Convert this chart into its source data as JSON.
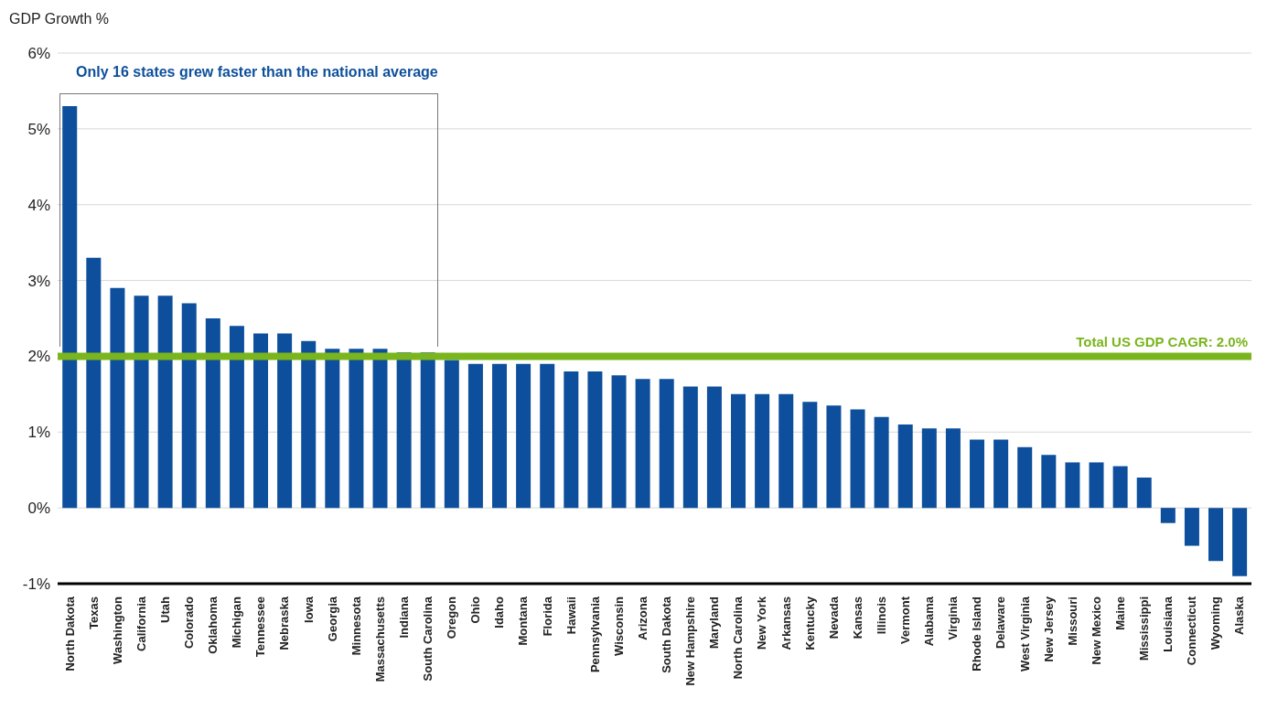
{
  "chart_data": {
    "type": "bar",
    "ylabel": "GDP Growth %",
    "categories": [
      "North Dakota",
      "Texas",
      "Washington",
      "California",
      "Utah",
      "Colorado",
      "Oklahoma",
      "Michigan",
      "Tennessee",
      "Nebraska",
      "Iowa",
      "Georgia",
      "Minnesota",
      "Massachusetts",
      "Indiana",
      "South Carolina",
      "Oregon",
      "Ohio",
      "Idaho",
      "Montana",
      "Florida",
      "Hawaii",
      "Pennsylvania",
      "Wisconsin",
      "Arizona",
      "South Dakota",
      "New Hampshire",
      "Maryland",
      "North Carolina",
      "New York",
      "Arkansas",
      "Kentucky",
      "Nevada",
      "Kansas",
      "Illinois",
      "Vermont",
      "Alabama",
      "Virginia",
      "Rhode Island",
      "Delaware",
      "West Virginia",
      "New Jersey",
      "Missouri",
      "New Mexico",
      "Maine",
      "Mississippi",
      "Louisiana",
      "Connecticut",
      "Wyoming",
      "Alaska"
    ],
    "values": [
      5.3,
      3.3,
      2.9,
      2.8,
      2.8,
      2.7,
      2.5,
      2.4,
      2.3,
      2.3,
      2.2,
      2.1,
      2.1,
      2.1,
      2.05,
      2.05,
      1.95,
      1.9,
      1.9,
      1.9,
      1.9,
      1.8,
      1.8,
      1.75,
      1.7,
      1.7,
      1.6,
      1.6,
      1.5,
      1.5,
      1.5,
      1.4,
      1.35,
      1.3,
      1.2,
      1.1,
      1.05,
      1.05,
      0.9,
      0.9,
      0.8,
      0.7,
      0.6,
      0.6,
      0.55,
      0.4,
      -0.2,
      -0.5,
      -0.7,
      -0.9
    ],
    "color": "#0d4f9c",
    "ylim": [
      -1,
      6
    ],
    "yticks": [
      {
        "value": -1,
        "label": "-1%"
      },
      {
        "value": 0,
        "label": "0%"
      },
      {
        "value": 1,
        "label": "1%"
      },
      {
        "value": 2,
        "label": "2%"
      },
      {
        "value": 3,
        "label": "3%"
      },
      {
        "value": 4,
        "label": "4%"
      },
      {
        "value": 5,
        "label": "5%"
      },
      {
        "value": 6,
        "label": "6%"
      }
    ],
    "grid": "y",
    "ref_lines": [
      {
        "axis": "y",
        "value": 2.0,
        "label": "Total US GDP CAGR: 2.0%",
        "color": "#7ab51d"
      }
    ],
    "annotations": [
      "Only 16 states grew faster than the national average"
    ]
  }
}
